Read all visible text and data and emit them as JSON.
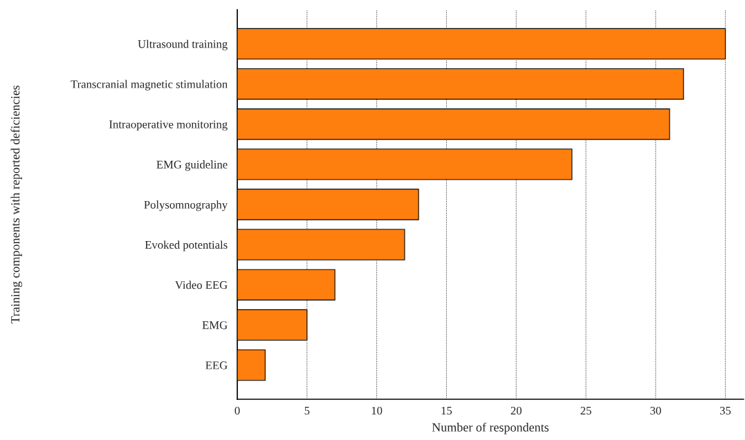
{
  "chart_data": {
    "type": "bar",
    "orientation": "horizontal",
    "xlabel": "Number of respondents",
    "ylabel": "Training components with reported deficiencies",
    "categories": [
      "Ultrasound training",
      "Transcranial magnetic stimulation",
      "Intraoperative monitoring",
      "EMG guideline",
      "Polysomnography",
      "Evoked potentials",
      "Video EEG",
      "EMG",
      "EEG"
    ],
    "values": [
      35,
      32,
      31,
      24,
      13,
      12,
      7,
      5,
      2
    ],
    "color": "#ff7f0e",
    "xlim": [
      0,
      36.3
    ],
    "xticks": [
      0,
      5,
      10,
      15,
      20,
      25,
      30,
      35
    ],
    "grid": "x",
    "legend": false
  }
}
